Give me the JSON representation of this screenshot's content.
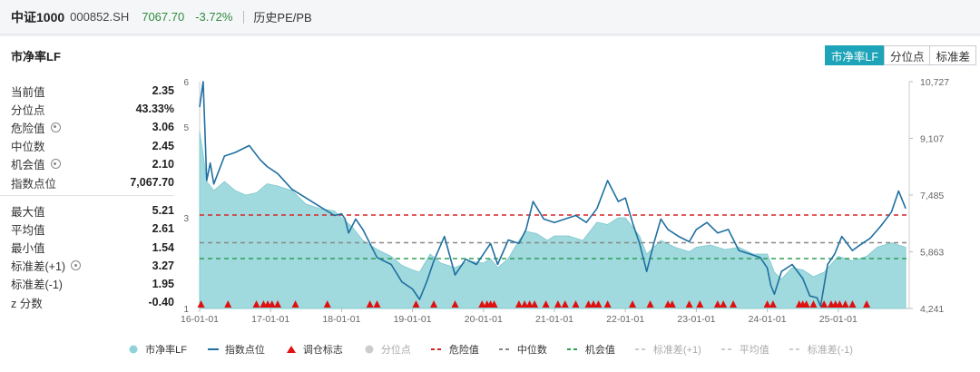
{
  "header": {
    "name": "中证1000",
    "code": "000852.SH",
    "price": "7067.70",
    "change": "-3.72%",
    "history_link": "历史PE/PB"
  },
  "panel": {
    "title": "市净率LF",
    "buttons": [
      {
        "label": "市净率LF",
        "active": true
      },
      {
        "label": "分位点",
        "active": false
      },
      {
        "label": "标准差",
        "active": false
      }
    ]
  },
  "stats_top": [
    {
      "label": "当前值",
      "value": "2.35",
      "gear": false
    },
    {
      "label": "分位点",
      "value": "43.33%",
      "gear": false
    },
    {
      "label": "危险值",
      "value": "3.06",
      "gear": true
    },
    {
      "label": "中位数",
      "value": "2.45",
      "gear": false
    },
    {
      "label": "机会值",
      "value": "2.10",
      "gear": true
    },
    {
      "label": "指数点位",
      "value": "7,067.70",
      "gear": false
    }
  ],
  "stats_bottom": [
    {
      "label": "最大值",
      "value": "5.21",
      "gear": false
    },
    {
      "label": "平均值",
      "value": "2.61",
      "gear": false
    },
    {
      "label": "最小值",
      "value": "1.54",
      "gear": false
    },
    {
      "label": "标准差(+1)",
      "value": "3.27",
      "gear": true
    },
    {
      "label": "标准差(-1)",
      "value": "1.95",
      "gear": false
    },
    {
      "label": "z 分数",
      "value": "-0.40",
      "gear": false
    }
  ],
  "colors": {
    "area": "#8fd3d8",
    "index_line": "#1f6fa0",
    "danger": "#d62728",
    "median": "#888888",
    "opportunity": "#2e9e57",
    "marker": "#e01010"
  },
  "chart_data": {
    "type": "area",
    "x_ticks": [
      "16-01-01",
      "17-01-01",
      "18-01-01",
      "19-01-01",
      "20-01-01",
      "21-01-01",
      "22-01-01",
      "23-01-01",
      "24-01-01",
      "25-01-01"
    ],
    "left_axis": {
      "ticks": [
        "1",
        "3",
        "5",
        "6"
      ],
      "range": [
        1,
        6
      ]
    },
    "right_axis": {
      "ticks": [
        "4,241",
        "5,863",
        "7,485",
        "9,107",
        "10,727"
      ],
      "range": [
        4241,
        10727
      ]
    },
    "reference_lines": {
      "danger": 3.06,
      "median": 2.45,
      "opportunity": 2.1
    },
    "pb_series": {
      "name": "市净率LF",
      "x": [
        2016.0,
        2016.05,
        2016.1,
        2016.2,
        2016.35,
        2016.5,
        2016.65,
        2016.8,
        2016.95,
        2017.1,
        2017.3,
        2017.5,
        2017.7,
        2017.9,
        2018.0,
        2018.15,
        2018.3,
        2018.5,
        2018.7,
        2018.85,
        2019.0,
        2019.1,
        2019.25,
        2019.4,
        2019.6,
        2019.8,
        2020.0,
        2020.1,
        2020.2,
        2020.35,
        2020.5,
        2020.6,
        2020.75,
        2020.9,
        2021.0,
        2021.2,
        2021.4,
        2021.6,
        2021.75,
        2021.9,
        2022.0,
        2022.2,
        2022.3,
        2022.5,
        2022.7,
        2022.9,
        2023.0,
        2023.2,
        2023.4,
        2023.6,
        2023.8,
        2024.0,
        2024.1,
        2024.2,
        2024.35,
        2024.5,
        2024.65,
        2024.8,
        2025.0,
        2025.2,
        2025.4,
        2025.55,
        2025.75,
        2025.95
      ],
      "values": [
        4.9,
        4.4,
        3.8,
        3.6,
        3.8,
        3.6,
        3.5,
        3.55,
        3.75,
        3.7,
        3.6,
        3.3,
        3.2,
        3.15,
        3.0,
        2.8,
        2.5,
        2.3,
        2.15,
        1.95,
        1.85,
        1.8,
        2.2,
        2.0,
        1.9,
        2.05,
        2.0,
        2.1,
        1.9,
        2.1,
        2.5,
        2.7,
        2.65,
        2.5,
        2.6,
        2.6,
        2.5,
        2.9,
        2.85,
        3.0,
        3.0,
        2.6,
        2.2,
        2.5,
        2.35,
        2.25,
        2.35,
        2.4,
        2.3,
        2.35,
        2.2,
        2.2,
        1.8,
        1.65,
        1.9,
        1.85,
        1.7,
        1.8,
        2.15,
        2.05,
        2.15,
        2.35,
        2.45,
        2.35
      ]
    },
    "index_series": {
      "name": "指数点位",
      "x": [
        2016.0,
        2016.05,
        2016.1,
        2016.15,
        2016.2,
        2016.35,
        2016.5,
        2016.7,
        2016.85,
        2016.95,
        2017.1,
        2017.3,
        2017.5,
        2017.7,
        2017.9,
        2018.0,
        2018.05,
        2018.1,
        2018.2,
        2018.3,
        2018.5,
        2018.7,
        2018.85,
        2019.0,
        2019.1,
        2019.2,
        2019.3,
        2019.45,
        2019.6,
        2019.75,
        2019.9,
        2020.0,
        2020.1,
        2020.2,
        2020.35,
        2020.5,
        2020.6,
        2020.7,
        2020.85,
        2021.0,
        2021.15,
        2021.3,
        2021.45,
        2021.6,
        2021.75,
        2021.9,
        2022.0,
        2022.1,
        2022.2,
        2022.3,
        2022.4,
        2022.5,
        2022.6,
        2022.75,
        2022.9,
        2023.0,
        2023.15,
        2023.3,
        2023.45,
        2023.6,
        2023.75,
        2023.9,
        2024.0,
        2024.05,
        2024.1,
        2024.2,
        2024.35,
        2024.5,
        2024.6,
        2024.7,
        2024.75,
        2024.85,
        2024.95,
        2025.05,
        2025.2,
        2025.3,
        2025.45,
        2025.6,
        2025.75,
        2025.85,
        2025.95
      ],
      "values": [
        10000,
        10727,
        7900,
        8400,
        7800,
        8600,
        8700,
        8900,
        8500,
        8300,
        8100,
        7650,
        7400,
        7150,
        6900,
        6950,
        6800,
        6400,
        6800,
        6500,
        5700,
        5500,
        5000,
        4800,
        4500,
        5000,
        5600,
        6300,
        5200,
        5650,
        5500,
        5800,
        6100,
        5500,
        6200,
        6100,
        6500,
        7300,
        6800,
        6700,
        6800,
        6900,
        6700,
        7100,
        7900,
        7300,
        7400,
        6700,
        6100,
        5300,
        6100,
        6800,
        6500,
        6300,
        6150,
        6500,
        6700,
        6400,
        6500,
        5900,
        5800,
        5700,
        5400,
        4900,
        4650,
        5300,
        5500,
        5100,
        4600,
        4550,
        4300,
        5500,
        5800,
        6300,
        5900,
        6050,
        6250,
        6600,
        7000,
        7600,
        7100
      ]
    },
    "rebalance_markers_x": [
      2016.02,
      2016.4,
      2016.8,
      2016.9,
      2016.96,
      2017.02,
      2017.1,
      2017.35,
      2017.8,
      2018.4,
      2018.5,
      2019.05,
      2019.3,
      2019.6,
      2019.98,
      2020.05,
      2020.1,
      2020.15,
      2020.5,
      2020.58,
      2020.65,
      2020.72,
      2020.88,
      2021.05,
      2021.15,
      2021.3,
      2021.48,
      2021.55,
      2021.62,
      2021.75,
      2022.1,
      2022.35,
      2022.6,
      2022.66,
      2022.9,
      2023.05,
      2023.3,
      2023.38,
      2023.52,
      2024.0,
      2024.08,
      2024.45,
      2024.5,
      2024.55,
      2024.65,
      2024.8,
      2024.9,
      2024.96,
      2025.02,
      2025.1,
      2025.2,
      2025.4
    ],
    "legend": [
      {
        "label": "市净率LF",
        "type": "area",
        "muted": false
      },
      {
        "label": "指数点位",
        "type": "line",
        "muted": false
      },
      {
        "label": "调仓标志",
        "type": "triangle",
        "muted": false
      },
      {
        "label": "分位点",
        "type": "dot",
        "muted": true
      },
      {
        "label": "危险值",
        "type": "dash-red",
        "muted": false
      },
      {
        "label": "中位数",
        "type": "dash-gray",
        "muted": false
      },
      {
        "label": "机会值",
        "type": "dash-green",
        "muted": false
      },
      {
        "label": "标准差(+1)",
        "type": "dash-light",
        "muted": true
      },
      {
        "label": "平均值",
        "type": "dash-light",
        "muted": true
      },
      {
        "label": "标准差(-1)",
        "type": "dash-light",
        "muted": true
      }
    ]
  }
}
